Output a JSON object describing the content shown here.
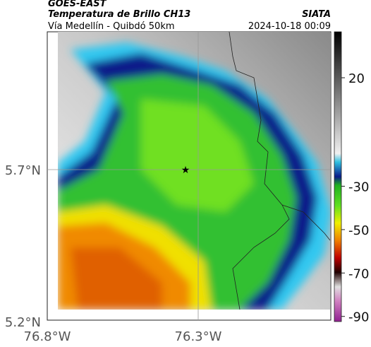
{
  "header": {
    "satellite": "GOES-EAST",
    "title": "Temperatura de Brillo CH13",
    "source": "SIATA",
    "location": "Vía Medellín - Quibdó 50km",
    "datetime": "2024-10-18 00:09"
  },
  "map": {
    "lat_ticks": [
      "5.7°N",
      "5.2°N"
    ],
    "lon_ticks": [
      "76.8°W",
      "76.3°W"
    ]
  },
  "colorbar": {
    "ticks": [
      20,
      -30,
      -50,
      -70,
      -90
    ]
  }
}
